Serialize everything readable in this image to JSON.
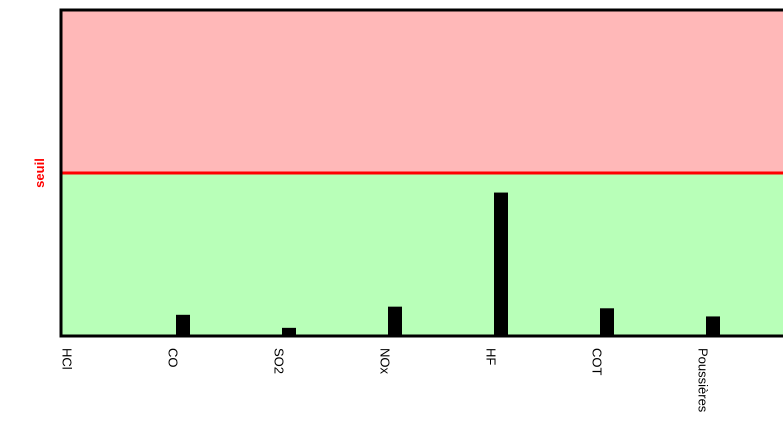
{
  "chart_data": {
    "type": "bar",
    "categories": [
      "HCl",
      "CO",
      "SO2",
      "NOx",
      "HF",
      "COT",
      "Poussières"
    ],
    "values": [
      0,
      13,
      5,
      18,
      88,
      17,
      12
    ],
    "color": "#000000",
    "ylim": [
      0,
      200
    ],
    "threshold": 100,
    "threshold_label": "seuil",
    "threshold_color": "#ff0000",
    "above_color": "#ffb8b8",
    "below_color": "#b8ffb8"
  }
}
